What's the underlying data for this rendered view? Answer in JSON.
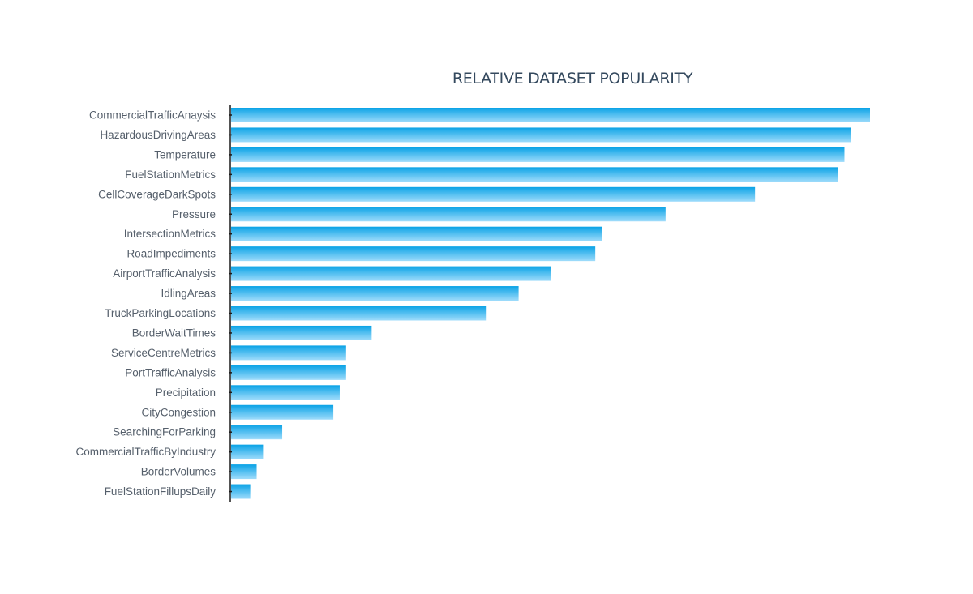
{
  "chart_data": {
    "type": "bar",
    "orientation": "horizontal",
    "title": "RELATIVE DATASET POPULARITY",
    "xlabel": "",
    "ylabel": "",
    "grid": false,
    "legend": "none",
    "xlim": [
      0,
      100
    ],
    "categories": [
      "CommercialTrafficAnaysis",
      "HazardousDrivingAreas",
      "Temperature",
      "FuelStationMetrics",
      "CellCoverageDarkSpots",
      "Pressure",
      "IntersectionMetrics",
      "RoadImpediments",
      "AirportTrafficAnalysis",
      "IdlingAreas",
      "TruckParkingLocations",
      "BorderWaitTimes",
      "ServiceCentreMetrics",
      "PortTrafficAnalysis",
      "Precipitation",
      "CityCongestion",
      "SearchingForParking",
      "CommercialTrafficByIndustry",
      "BorderVolumes",
      "FuelStationFillupsDaily"
    ],
    "values": [
      100,
      97,
      96,
      95,
      82,
      68,
      58,
      57,
      50,
      45,
      40,
      22,
      18,
      18,
      17,
      16,
      8,
      5,
      4,
      3
    ],
    "colors": {
      "bar_top": "#0aa3e6",
      "bar_bottom": "#9fdcfb",
      "axis": "#1a1a1a",
      "title": "#34495e",
      "label": "#555f6b"
    }
  }
}
